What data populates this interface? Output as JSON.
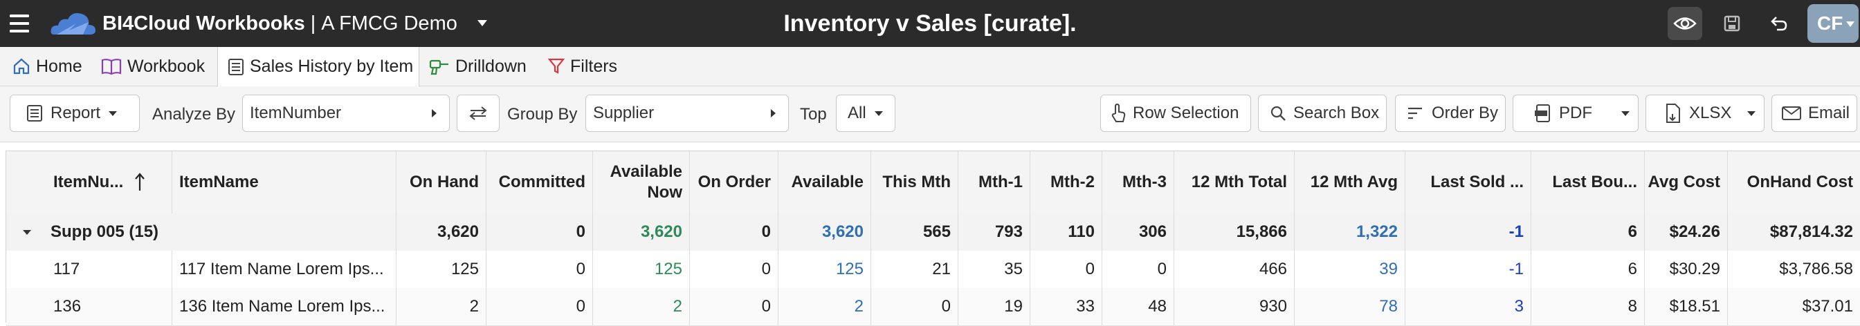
{
  "app": {
    "brand_name": "BI4Cloud Workbooks",
    "separator": "|",
    "workbook_name": "A FMCG Demo",
    "page_title": "Inventory v Sales [curate].",
    "user_initials": "CF"
  },
  "tabs": [
    {
      "label": "Home",
      "icon": "home-icon"
    },
    {
      "label": "Workbook",
      "icon": "book-icon"
    },
    {
      "label": "Sales History by Item",
      "icon": "table-icon",
      "active": true
    },
    {
      "label": "Drilldown",
      "icon": "drill-icon"
    },
    {
      "label": "Filters",
      "icon": "filter-icon"
    }
  ],
  "toolbar": {
    "report_label": "Report",
    "analyze_by_label": "Analyze By",
    "analyze_by_value": "ItemNumber",
    "group_by_label": "Group By",
    "group_by_value": "Supplier",
    "top_label": "Top",
    "top_value": "All",
    "row_selection_label": "Row Selection",
    "search_box_label": "Search Box",
    "order_by_label": "Order By",
    "pdf_label": "PDF",
    "xlsx_label": "XLSX",
    "email_label": "Email"
  },
  "grid": {
    "columns": [
      "ItemNu...",
      "ItemName",
      "On Hand",
      "Committed",
      "Available Now",
      "On Order",
      "Available",
      "This Mth",
      "Mth-1",
      "Mth-2",
      "Mth-3",
      "12 Mth Total",
      "12 Mth Avg",
      "Last Sold ...",
      "Last Bou...",
      "Avg Cost",
      "OnHand Cost"
    ],
    "group": {
      "label": "Supp 005 (15)",
      "values": [
        "3,620",
        "0",
        "3,620",
        "0",
        "3,620",
        "565",
        "793",
        "110",
        "306",
        "15,866",
        "1,322",
        "-1",
        "6",
        "$24.26",
        "$87,814.32"
      ]
    },
    "rows": [
      {
        "item_number": "117",
        "item_name": "117 Item Name Lorem Ips...",
        "values": [
          "125",
          "0",
          "125",
          "0",
          "125",
          "21",
          "35",
          "0",
          "0",
          "466",
          "39",
          "-1",
          "6",
          "$30.29",
          "$3,786.58"
        ]
      },
      {
        "item_number": "136",
        "item_name": "136 Item Name Lorem Ips...",
        "values": [
          "2",
          "0",
          "2",
          "0",
          "2",
          "0",
          "19",
          "33",
          "48",
          "930",
          "78",
          "3",
          "8",
          "$18.51",
          "$37.01"
        ]
      }
    ]
  },
  "colors": {
    "appbar": "#2b2b2b",
    "available_now": "#2f8a5a",
    "available": "#2f6fb5",
    "last_sold": "#1a3fb8"
  }
}
